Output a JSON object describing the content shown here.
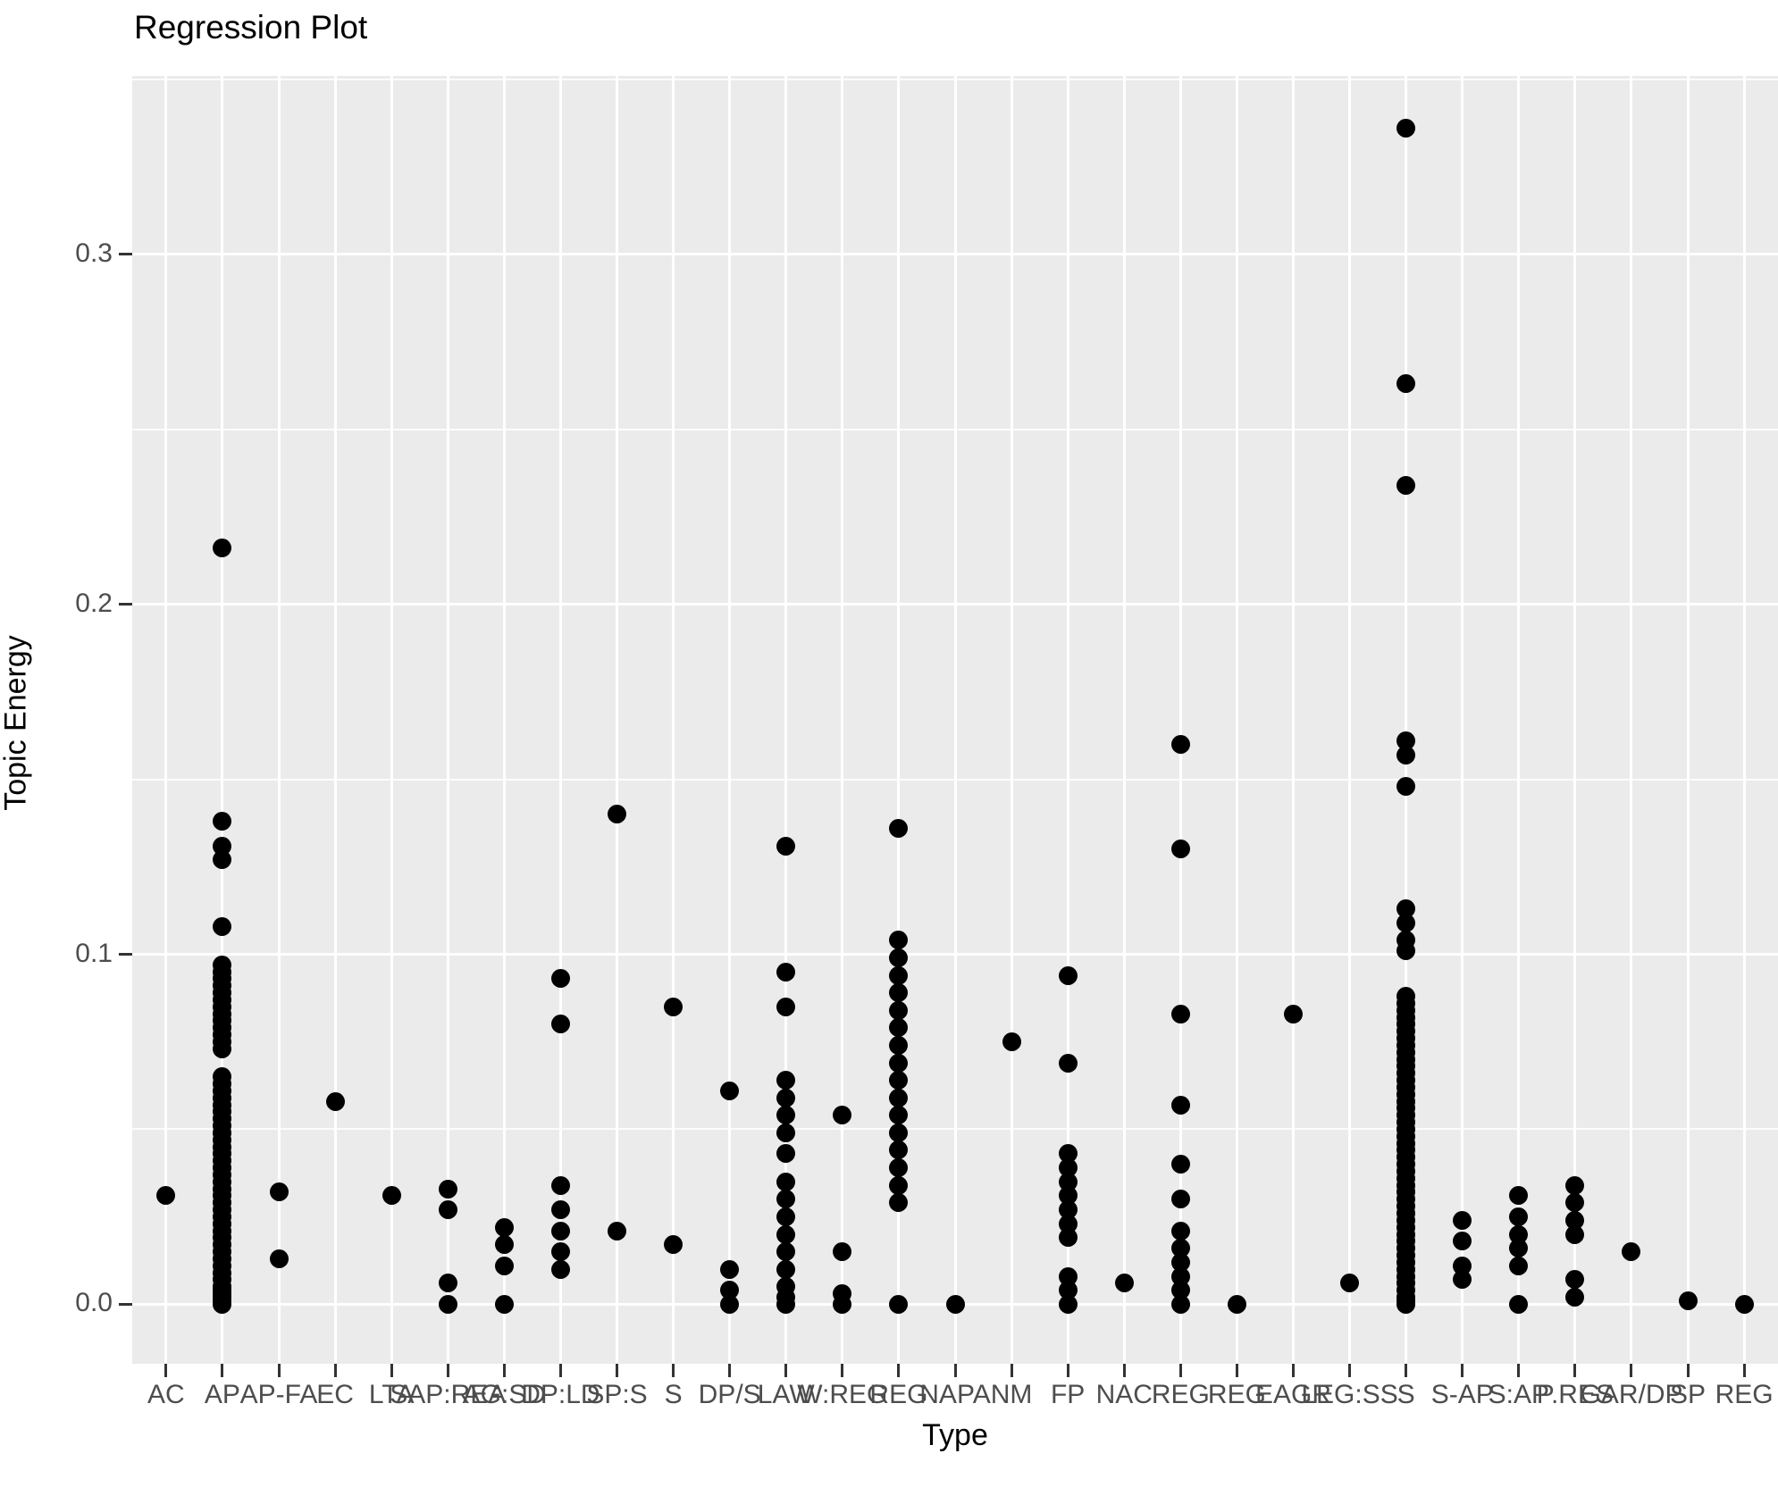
{
  "title": "Regression Plot",
  "chart_data": {
    "type": "scatter",
    "title": "Regression Plot",
    "xlabel": "Type",
    "ylabel": "Topic Energy",
    "ylim": [
      -0.017,
      0.351
    ],
    "y_ticks": [
      0,
      0.1,
      0.2,
      0.3
    ],
    "y_tick_labels": [
      "0.0",
      "0.1",
      "0.2",
      "0.3"
    ],
    "y_minor_ticks": [
      0.05,
      0.15,
      0.25,
      0.35
    ],
    "grid": "white major and minor gridlines on gray panel",
    "legend": "none",
    "panel_bg": "#EBEBEB",
    "point_color": "#000000",
    "axis_text_color": "#4d4d4d",
    "categories": [
      "AC",
      "AP",
      "AP-FA",
      "EC",
      "LTA",
      "SAP:REA",
      "AG:SD",
      "DP:LD",
      "SP:S",
      "S",
      "DP/S",
      "LAW",
      "W:REG",
      "REG",
      "NAPA",
      "NM",
      "FP",
      "NAC",
      "REG",
      "REG",
      "EAGR",
      "LEG:SS",
      "S",
      "S-AP",
      "S:AP",
      "P.RES",
      "GAR/DP",
      "SP",
      "REG"
    ],
    "series": [
      {
        "category": "AC",
        "values": [
          0.031
        ]
      },
      {
        "category": "AP",
        "values": [
          0.216,
          0.138,
          0.131,
          0.127,
          0.108,
          0.097,
          0.095,
          0.093,
          0.091,
          0.089,
          0.087,
          0.085,
          0.083,
          0.081,
          0.079,
          0.077,
          0.075,
          0.073,
          0.065,
          0.063,
          0.061,
          0.059,
          0.057,
          0.055,
          0.053,
          0.051,
          0.049,
          0.047,
          0.045,
          0.043,
          0.041,
          0.039,
          0.037,
          0.035,
          0.033,
          0.031,
          0.029,
          0.027,
          0.025,
          0.023,
          0.021,
          0.019,
          0.017,
          0.015,
          0.013,
          0.011,
          0.009,
          0.007,
          0.005,
          0.004,
          0.003,
          0.002,
          0.001,
          0.0
        ]
      },
      {
        "category": "AP-FA",
        "values": [
          0.032,
          0.013
        ]
      },
      {
        "category": "EC",
        "values": [
          0.058
        ]
      },
      {
        "category": "LTA",
        "values": [
          0.031
        ]
      },
      {
        "category": "SAP:REA",
        "values": [
          0.033,
          0.027,
          0.006,
          0.0
        ]
      },
      {
        "category": "AG:SD",
        "values": [
          0.022,
          0.017,
          0.011,
          0.0
        ]
      },
      {
        "category": "DP:LD",
        "values": [
          0.093,
          0.08,
          0.034,
          0.027,
          0.021,
          0.015,
          0.01
        ]
      },
      {
        "category": "SP:S",
        "values": [
          0.14,
          0.021
        ]
      },
      {
        "category": "S",
        "values": [
          0.085,
          0.017
        ]
      },
      {
        "category": "DP/S",
        "values": [
          0.061,
          0.01,
          0.004,
          0.0
        ]
      },
      {
        "category": "LAW",
        "values": [
          0.131,
          0.095,
          0.085,
          0.064,
          0.059,
          0.054,
          0.049,
          0.043,
          0.035,
          0.03,
          0.025,
          0.02,
          0.015,
          0.01,
          0.005,
          0.002,
          0.0
        ]
      },
      {
        "category": "W:REG",
        "values": [
          0.054,
          0.015,
          0.003,
          0.0
        ]
      },
      {
        "category": "REG",
        "values": [
          0.136,
          0.104,
          0.099,
          0.094,
          0.089,
          0.084,
          0.079,
          0.074,
          0.069,
          0.064,
          0.059,
          0.054,
          0.049,
          0.044,
          0.039,
          0.034,
          0.029,
          0.0
        ]
      },
      {
        "category": "NAPA",
        "values": [
          0.0
        ]
      },
      {
        "category": "NM",
        "values": [
          0.075
        ]
      },
      {
        "category": "FP",
        "values": [
          0.094,
          0.069,
          0.043,
          0.039,
          0.035,
          0.031,
          0.027,
          0.023,
          0.019,
          0.008,
          0.004,
          0.0
        ]
      },
      {
        "category": "NAC",
        "values": [
          0.006
        ]
      },
      {
        "category": "REG",
        "values": [
          0.16,
          0.13,
          0.083,
          0.057,
          0.04,
          0.03,
          0.021,
          0.016,
          0.012,
          0.008,
          0.004,
          0.0
        ]
      },
      {
        "category": "REG",
        "values": [
          0.0
        ]
      },
      {
        "category": "EAGR",
        "values": [
          0.083
        ]
      },
      {
        "category": "LEG:SS",
        "values": [
          0.006
        ]
      },
      {
        "category": "S",
        "values": [
          0.336,
          0.263,
          0.234,
          0.161,
          0.157,
          0.148,
          0.113,
          0.109,
          0.104,
          0.101,
          0.088,
          0.086,
          0.084,
          0.082,
          0.08,
          0.078,
          0.076,
          0.074,
          0.072,
          0.07,
          0.068,
          0.066,
          0.064,
          0.062,
          0.06,
          0.058,
          0.056,
          0.054,
          0.052,
          0.05,
          0.048,
          0.046,
          0.044,
          0.042,
          0.04,
          0.038,
          0.036,
          0.034,
          0.032,
          0.03,
          0.028,
          0.026,
          0.024,
          0.022,
          0.02,
          0.018,
          0.016,
          0.014,
          0.012,
          0.01,
          0.008,
          0.006,
          0.004,
          0.002,
          0.001,
          0.0
        ]
      },
      {
        "category": "S-AP",
        "values": [
          0.024,
          0.018,
          0.011,
          0.007
        ]
      },
      {
        "category": "S:AP",
        "values": [
          0.031,
          0.025,
          0.02,
          0.016,
          0.011,
          0.0
        ]
      },
      {
        "category": "P.RES",
        "values": [
          0.034,
          0.029,
          0.024,
          0.02,
          0.007,
          0.002
        ]
      },
      {
        "category": "GAR/DP",
        "values": [
          0.015
        ]
      },
      {
        "category": "SP",
        "values": [
          0.001
        ]
      },
      {
        "category": "REG",
        "values": [
          0.0
        ]
      }
    ]
  }
}
